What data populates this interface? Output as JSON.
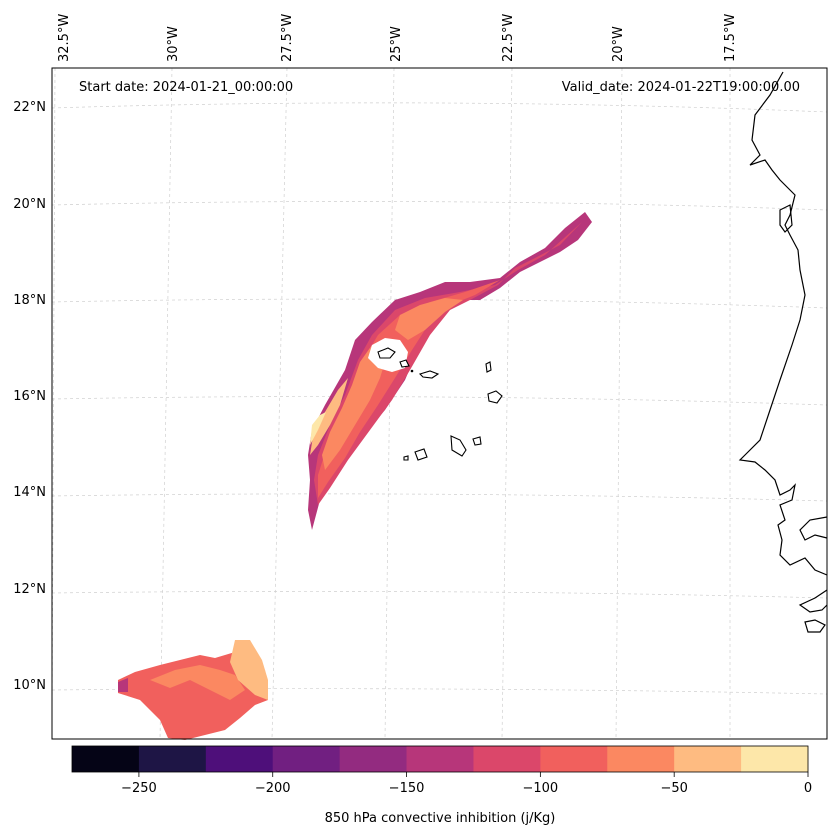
{
  "annotations": {
    "start_date": "Start date: 2024-01-21_00:00:00",
    "valid_date": "Valid_date: 2024-01-22T19:00:00.00"
  },
  "lon_labels": [
    "32.5°W",
    "30°W",
    "27.5°W",
    "25°W",
    "22.5°W",
    "20°W",
    "17.5°W"
  ],
  "lat_labels": [
    "22°N",
    "20°N",
    "18°N",
    "16°N",
    "14°N",
    "12°N",
    "10°N"
  ],
  "colorbar": {
    "label": "850 hPa convective inhibition (j/Kg)",
    "tick_labels": [
      "−250",
      "−200",
      "−150",
      "−100",
      "−50",
      "0"
    ],
    "levels": [
      -275,
      -250,
      -225,
      -200,
      -175,
      -150,
      -125,
      -100,
      -75,
      -50,
      -25,
      0
    ],
    "colors": [
      "#050416",
      "#1e1545",
      "#4e0f7a",
      "#711f81",
      "#932b80",
      "#b7367a",
      "#db476a",
      "#f1605d",
      "#fb8861",
      "#febb81",
      "#fde7a9"
    ]
  },
  "map": {
    "projection": "conic",
    "extent": {
      "lon_min": -33,
      "lon_max": -16,
      "lat_min": 9,
      "lat_max": 22.5
    },
    "gridlines": "dashed",
    "fields": [
      {
        "name": "band",
        "level_color": "#b7367a"
      },
      {
        "name": "band-inner",
        "level_color": "#db476a"
      },
      {
        "name": "band-core",
        "level_color": "#f1605d"
      },
      {
        "name": "band-light",
        "level_color": "#fb8861"
      },
      {
        "name": "band-lightest",
        "level_color": "#febb81"
      },
      {
        "name": "south-blob",
        "level_color": "#f1605d"
      }
    ]
  }
}
